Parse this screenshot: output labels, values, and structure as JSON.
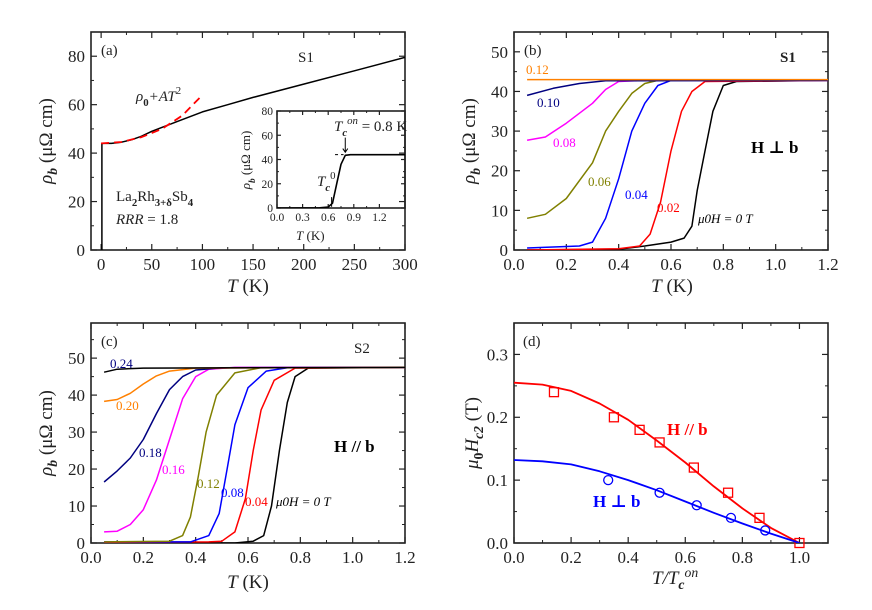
{
  "chart_data": [
    {
      "panel": "(a)",
      "type": "line",
      "sample": "S1",
      "material": {
        "base": "La",
        "s1": "2",
        "mid": "Rh",
        "s2": "3+δ",
        "end": "Sb",
        "s3": "4"
      },
      "rrr": {
        "label": "RRR",
        "rest": " = 1.8"
      },
      "xlabel": {
        "symbol": "T",
        "unit": " (K)"
      },
      "ylabel": {
        "symbol": "ρ",
        "sub": "b",
        "unit": " (μΩ cm)"
      },
      "xlim": [
        -10,
        300
      ],
      "ylim": [
        0,
        90
      ],
      "xticks": [
        0,
        50,
        100,
        150,
        200,
        250,
        300
      ],
      "yticks": [
        0,
        20,
        40,
        60,
        80
      ],
      "fit_label": {
        "a": "ρ",
        "sub": "0",
        "b": "+AT",
        "sup": "2"
      },
      "series": [
        {
          "style": "solid",
          "color": "#000000",
          "points": [
            [
              0.8,
              0
            ],
            [
              0.8,
              44
            ],
            [
              1,
              44
            ],
            [
              10,
              44
            ],
            [
              20,
              44.5
            ],
            [
              30,
              45.5
            ],
            [
              40,
              47
            ],
            [
              50,
              49
            ],
            [
              75,
              53
            ],
            [
              100,
              57
            ],
            [
              125,
              60
            ],
            [
              150,
              63
            ],
            [
              200,
              68.5
            ],
            [
              250,
              74
            ],
            [
              300,
              79.5
            ]
          ]
        },
        {
          "style": "dashed",
          "color": "#ff0000",
          "points": [
            [
              0,
              44
            ],
            [
              20,
              44.6
            ],
            [
              40,
              46.6
            ],
            [
              60,
              50
            ],
            [
              80,
              55.5
            ],
            [
              100,
              64
            ]
          ]
        }
      ],
      "inset": {
        "xlabel": {
          "symbol": "T",
          "unit": " (K)"
        },
        "ylabel": {
          "symbol": "ρ",
          "sub": "b",
          "unit": " (μΩ cm)"
        },
        "xlim": [
          0,
          1.5
        ],
        "ylim": [
          0,
          80
        ],
        "xticks": [
          "0.0",
          "0.3",
          "0.6",
          "0.9",
          "1.2"
        ],
        "yticks": [
          0,
          20,
          40,
          60,
          80
        ],
        "onset_label": {
          "sym": "T",
          "sub": "c",
          "sup": "on",
          "rest": " = 0.8 K"
        },
        "zero_label": {
          "sym": "T",
          "sub": "c",
          "sup": "0"
        },
        "series": [
          {
            "color": "#000000",
            "points": [
              [
                0,
                0
              ],
              [
                0.5,
                0.2
              ],
              [
                0.6,
                0.8
              ],
              [
                0.65,
                4
              ],
              [
                0.7,
                20
              ],
              [
                0.75,
                36
              ],
              [
                0.8,
                43.5
              ],
              [
                0.86,
                44
              ],
              [
                1.5,
                44
              ]
            ]
          }
        ]
      }
    },
    {
      "panel": "(b)",
      "type": "line",
      "sample": "S1",
      "field_dir": "H ⊥ b",
      "xlabel": {
        "symbol": "T",
        "unit": " (K)"
      },
      "ylabel": {
        "symbol": "ρ",
        "sub": "b",
        "unit": " (μΩ cm)"
      },
      "xlim": [
        0,
        1.2
      ],
      "ylim": [
        0,
        55
      ],
      "xticks": [
        "0.0",
        "0.2",
        "0.4",
        "0.6",
        "0.8",
        "1.0",
        "1.2"
      ],
      "yticks": [
        0,
        10,
        20,
        30,
        40,
        50
      ],
      "series": [
        {
          "name": "μ0H = 0 T",
          "color": "#000000",
          "points": [
            [
              0.05,
              0
            ],
            [
              0.4,
              0.2
            ],
            [
              0.5,
              1
            ],
            [
              0.6,
              2
            ],
            [
              0.65,
              3
            ],
            [
              0.68,
              6
            ],
            [
              0.7,
              15
            ],
            [
              0.73,
              25
            ],
            [
              0.76,
              35
            ],
            [
              0.8,
              41.5
            ],
            [
              0.85,
              42.5
            ],
            [
              1.2,
              42.8
            ]
          ]
        },
        {
          "name": "0.02",
          "color": "#ff0000",
          "points": [
            [
              0.05,
              0
            ],
            [
              0.4,
              0.3
            ],
            [
              0.48,
              1
            ],
            [
              0.52,
              4
            ],
            [
              0.56,
              12
            ],
            [
              0.6,
              25
            ],
            [
              0.64,
              35
            ],
            [
              0.68,
              40
            ],
            [
              0.73,
              42.5
            ],
            [
              1.2,
              42.8
            ]
          ]
        },
        {
          "name": "0.04",
          "color": "#0000ff",
          "points": [
            [
              0.05,
              0.5
            ],
            [
              0.25,
              1
            ],
            [
              0.3,
              2
            ],
            [
              0.35,
              8
            ],
            [
              0.4,
              18
            ],
            [
              0.45,
              30
            ],
            [
              0.5,
              37
            ],
            [
              0.55,
              41.5
            ],
            [
              0.6,
              42.8
            ],
            [
              1.2,
              42.8
            ]
          ]
        },
        {
          "name": "0.06",
          "color": "#808000",
          "points": [
            [
              0.05,
              8
            ],
            [
              0.12,
              9
            ],
            [
              0.2,
              13
            ],
            [
              0.3,
              22
            ],
            [
              0.35,
              30
            ],
            [
              0.4,
              35
            ],
            [
              0.45,
              39.5
            ],
            [
              0.5,
              42
            ],
            [
              0.55,
              42.8
            ],
            [
              1.2,
              42.8
            ]
          ]
        },
        {
          "name": "0.08",
          "color": "#ff00ff",
          "points": [
            [
              0.05,
              27.7
            ],
            [
              0.12,
              28.5
            ],
            [
              0.2,
              32
            ],
            [
              0.3,
              37
            ],
            [
              0.35,
              40.5
            ],
            [
              0.4,
              42.5
            ],
            [
              0.5,
              42.8
            ],
            [
              1.2,
              42.8
            ]
          ]
        },
        {
          "name": "0.10",
          "color": "#000080",
          "points": [
            [
              0.05,
              39
            ],
            [
              0.15,
              40.8
            ],
            [
              0.25,
              42
            ],
            [
              0.35,
              42.7
            ],
            [
              1.2,
              42.8
            ]
          ]
        },
        {
          "name": "0.12",
          "color": "#ff8000",
          "points": [
            [
              0.05,
              43
            ],
            [
              1.2,
              43
            ]
          ]
        }
      ]
    },
    {
      "panel": "(c)",
      "type": "line",
      "sample": "S2",
      "field_dir": "H // b",
      "xlabel": {
        "symbol": "T",
        "unit": " (K)"
      },
      "ylabel": {
        "symbol": "ρ",
        "sub": "b",
        "unit": " (μΩ cm)"
      },
      "xlim": [
        0,
        1.2
      ],
      "ylim": [
        0,
        59.5
      ],
      "xticks": [
        "0.0",
        "0.2",
        "0.4",
        "0.6",
        "0.8",
        "1.0",
        "1.2"
      ],
      "yticks": [
        0,
        10,
        20,
        30,
        40,
        50
      ],
      "series": [
        {
          "name": "μ0H = 0 T",
          "color": "#000000",
          "points": [
            [
              0.05,
              0
            ],
            [
              0.55,
              0
            ],
            [
              0.62,
              0.5
            ],
            [
              0.66,
              2
            ],
            [
              0.69,
              10
            ],
            [
              0.72,
              25
            ],
            [
              0.75,
              38
            ],
            [
              0.78,
              45
            ],
            [
              0.83,
              47.3
            ],
            [
              1.2,
              47.5
            ]
          ]
        },
        {
          "name": "0.04",
          "color": "#ff0000",
          "points": [
            [
              0.05,
              0.2
            ],
            [
              0.45,
              0.3
            ],
            [
              0.5,
              0.5
            ],
            [
              0.55,
              3
            ],
            [
              0.59,
              12
            ],
            [
              0.62,
              25
            ],
            [
              0.65,
              36
            ],
            [
              0.7,
              44
            ],
            [
              0.78,
              47.3
            ],
            [
              1.2,
              47.5
            ]
          ]
        },
        {
          "name": "0.08",
          "color": "#0000ff",
          "points": [
            [
              0.05,
              0.3
            ],
            [
              0.38,
              0.3
            ],
            [
              0.45,
              2
            ],
            [
              0.49,
              8
            ],
            [
              0.52,
              20
            ],
            [
              0.55,
              32
            ],
            [
              0.6,
              42
            ],
            [
              0.67,
              46.5
            ],
            [
              0.75,
              47.4
            ],
            [
              1.2,
              47.5
            ]
          ]
        },
        {
          "name": "0.12",
          "color": "#808000",
          "points": [
            [
              0.05,
              0.3
            ],
            [
              0.3,
              0.5
            ],
            [
              0.35,
              2
            ],
            [
              0.38,
              7
            ],
            [
              0.41,
              18
            ],
            [
              0.44,
              30
            ],
            [
              0.48,
              40
            ],
            [
              0.55,
              46
            ],
            [
              0.65,
              47.4
            ],
            [
              1.2,
              47.5
            ]
          ]
        },
        {
          "name": "0.16",
          "color": "#ff00ff",
          "points": [
            [
              0.05,
              3
            ],
            [
              0.1,
              3.2
            ],
            [
              0.15,
              5
            ],
            [
              0.2,
              9
            ],
            [
              0.25,
              17
            ],
            [
              0.3,
              28
            ],
            [
              0.35,
              39
            ],
            [
              0.4,
              45
            ],
            [
              0.45,
              47
            ],
            [
              0.55,
              47.5
            ],
            [
              1.2,
              47.5
            ]
          ]
        },
        {
          "name": "0.18",
          "color": "#000080",
          "points": [
            [
              0.05,
              16.5
            ],
            [
              0.1,
              19.5
            ],
            [
              0.15,
              23
            ],
            [
              0.2,
              28
            ],
            [
              0.25,
              35
            ],
            [
              0.3,
              41.5
            ],
            [
              0.35,
              45
            ],
            [
              0.4,
              46.8
            ],
            [
              0.5,
              47.4
            ],
            [
              1.2,
              47.5
            ]
          ]
        },
        {
          "name": "0.20",
          "color": "#ff8000",
          "points": [
            [
              0.05,
              38.3
            ],
            [
              0.1,
              38.8
            ],
            [
              0.15,
              40.5
            ],
            [
              0.2,
              43
            ],
            [
              0.25,
              45.2
            ],
            [
              0.3,
              46.5
            ],
            [
              0.4,
              47.3
            ],
            [
              1.2,
              47.5
            ]
          ]
        },
        {
          "name": "0.24",
          "color": "#000000",
          "points": [
            [
              0.05,
              46.2
            ],
            [
              0.1,
              47
            ],
            [
              0.2,
              47.3
            ],
            [
              1.2,
              47.5
            ]
          ]
        }
      ]
    },
    {
      "panel": "(d)",
      "type": "scatter",
      "xlabel": {
        "symbol": "T/T",
        "sub": "c",
        "sup": "on"
      },
      "ylabel": {
        "mu": "μ",
        "sub0": "0",
        "H": "H",
        "sub": "c2",
        "unit": " (T)"
      },
      "xlim": [
        0,
        1.1
      ],
      "ylim": [
        0,
        0.35
      ],
      "xticks": [
        "0.0",
        "0.2",
        "0.4",
        "0.6",
        "0.8",
        "1.0"
      ],
      "yticks": [
        "0.0",
        "0.1",
        "0.2",
        "0.3"
      ],
      "series": [
        {
          "name": "H // b",
          "color": "#ff0000",
          "marker": "square",
          "points": [
            [
              0.14,
              0.24
            ],
            [
              0.35,
              0.2
            ],
            [
              0.44,
              0.18
            ],
            [
              0.51,
              0.16
            ],
            [
              0.63,
              0.12
            ],
            [
              0.75,
              0.08
            ],
            [
              0.86,
              0.04
            ],
            [
              1.0,
              0.0
            ]
          ],
          "fit": [
            [
              0,
              0.255
            ],
            [
              0.1,
              0.252
            ],
            [
              0.2,
              0.242
            ],
            [
              0.3,
              0.222
            ],
            [
              0.4,
              0.196
            ],
            [
              0.5,
              0.163
            ],
            [
              0.6,
              0.128
            ],
            [
              0.7,
              0.09
            ],
            [
              0.8,
              0.055
            ],
            [
              0.9,
              0.024
            ],
            [
              1.0,
              0
            ]
          ]
        },
        {
          "name": "H ⊥ b",
          "color": "#0000ff",
          "marker": "circle",
          "points": [
            [
              0.33,
              0.1
            ],
            [
              0.51,
              0.08
            ],
            [
              0.64,
              0.06
            ],
            [
              0.76,
              0.04
            ],
            [
              0.88,
              0.02
            ]
          ],
          "fit": [
            [
              0,
              0.132
            ],
            [
              0.1,
              0.13
            ],
            [
              0.2,
              0.125
            ],
            [
              0.3,
              0.114
            ],
            [
              0.4,
              0.1
            ],
            [
              0.5,
              0.084
            ],
            [
              0.6,
              0.066
            ],
            [
              0.7,
              0.048
            ],
            [
              0.8,
              0.031
            ],
            [
              0.9,
              0.015
            ],
            [
              1.0,
              0
            ]
          ]
        }
      ]
    }
  ]
}
